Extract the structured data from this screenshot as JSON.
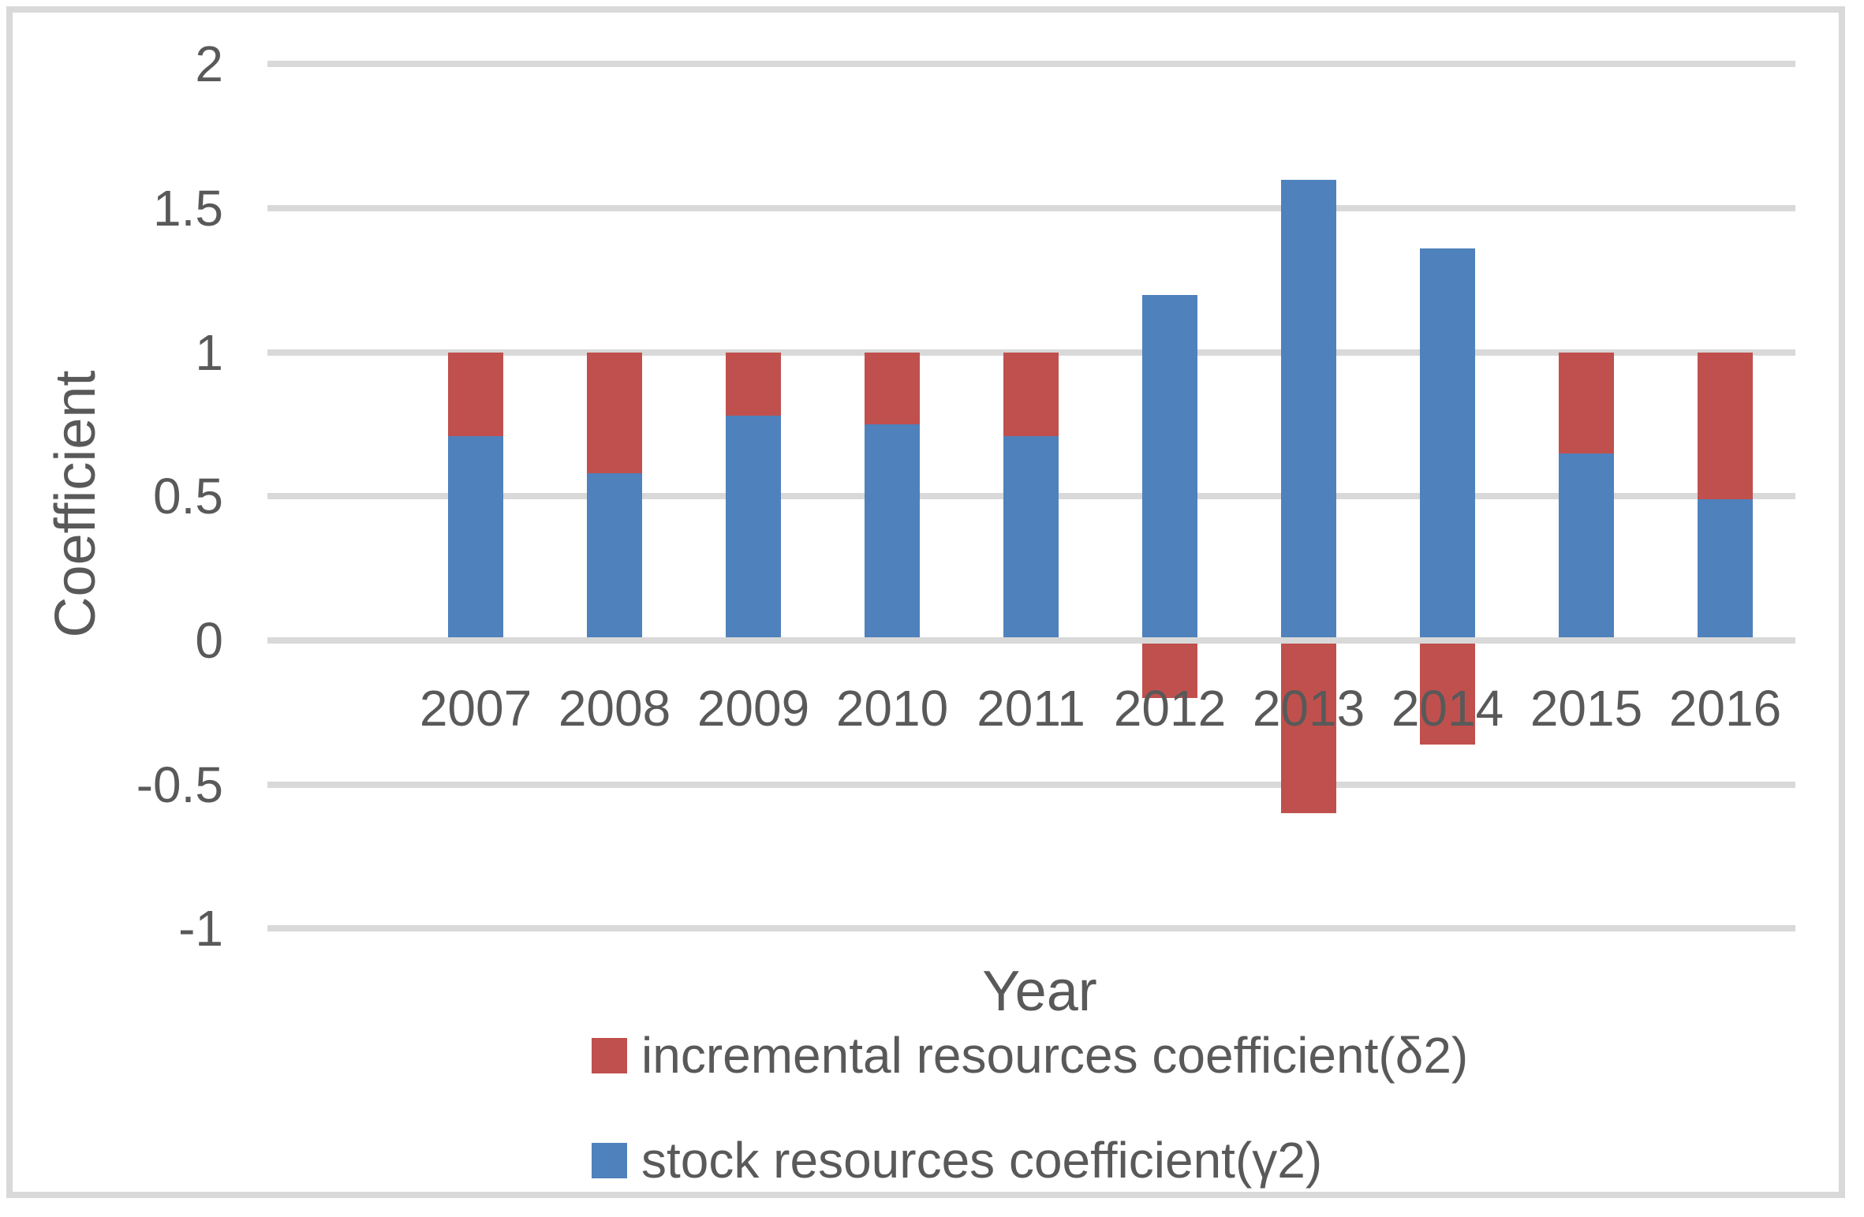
{
  "chart_data": {
    "type": "bar",
    "stacked": true,
    "title": "",
    "xlabel": "Year",
    "ylabel": "Coefficient",
    "categories": [
      "2007",
      "2008",
      "2009",
      "2010",
      "2011",
      "2012",
      "2013",
      "2014",
      "2015",
      "2016"
    ],
    "series": [
      {
        "name": "incremental resources coefficient(δ2)",
        "color": "#C0504D",
        "values": [
          0.29,
          0.42,
          0.22,
          0.25,
          0.29,
          -0.2,
          -0.6,
          -0.36,
          0.35,
          0.51
        ]
      },
      {
        "name": "stock resources coefficient(γ2)",
        "color": "#4F81BD",
        "values": [
          0.71,
          0.58,
          0.78,
          0.75,
          0.71,
          1.2,
          1.6,
          1.36,
          0.65,
          0.49
        ]
      }
    ],
    "stack_order": [
      1,
      0
    ],
    "ylim": [
      -1,
      2
    ],
    "ytick_labels": [
      "2",
      "1.5",
      "1",
      "0.5",
      "0",
      "-0.5",
      "-1"
    ],
    "ytick_values": [
      2,
      1.5,
      1,
      0.5,
      0,
      -0.5,
      -1
    ],
    "grid": true,
    "gridline_color": "#D9D9D9",
    "text_color": "#595959",
    "legend_position": "bottom"
  }
}
